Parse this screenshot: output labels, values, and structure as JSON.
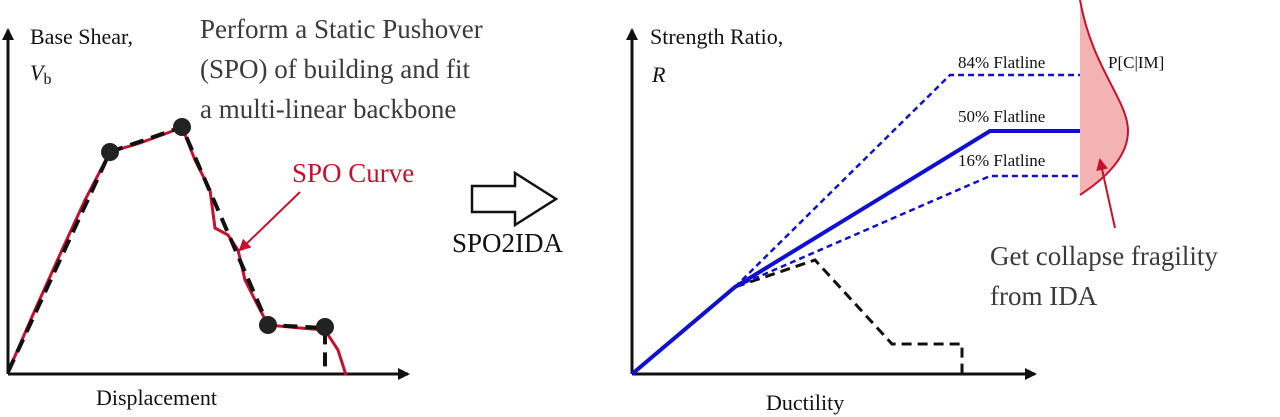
{
  "left_panel": {
    "y_axis_label_line1": "Base Shear,",
    "y_axis_symbol": "V",
    "y_axis_subscript": "b",
    "x_axis_label": "Displacement",
    "description_line1": "Perform a Static Pushover",
    "description_line2": "(SPO) of building and fit",
    "description_line3": "a multi-linear backbone",
    "curve_label": "SPO Curve",
    "curve_color": "#c8102e",
    "backbone_color": "#111111"
  },
  "transition": {
    "arrow_label": "SPO2IDA"
  },
  "right_panel": {
    "y_axis_label_line1": "Strength Ratio,",
    "y_axis_symbol": "R",
    "x_axis_label": "Ductility",
    "flatlines": [
      {
        "label": "84% Flatline",
        "style": "dashed"
      },
      {
        "label": "50% Flatline",
        "style": "solid"
      },
      {
        "label": "16% Flatline",
        "style": "dashed"
      }
    ],
    "flatline_color": "#1010d0",
    "distribution_label": "P[C|IM]",
    "distribution_fill": "#f4b3b3",
    "fragility_line1": "Get collapse fragility",
    "fragility_line2": "from IDA"
  }
}
